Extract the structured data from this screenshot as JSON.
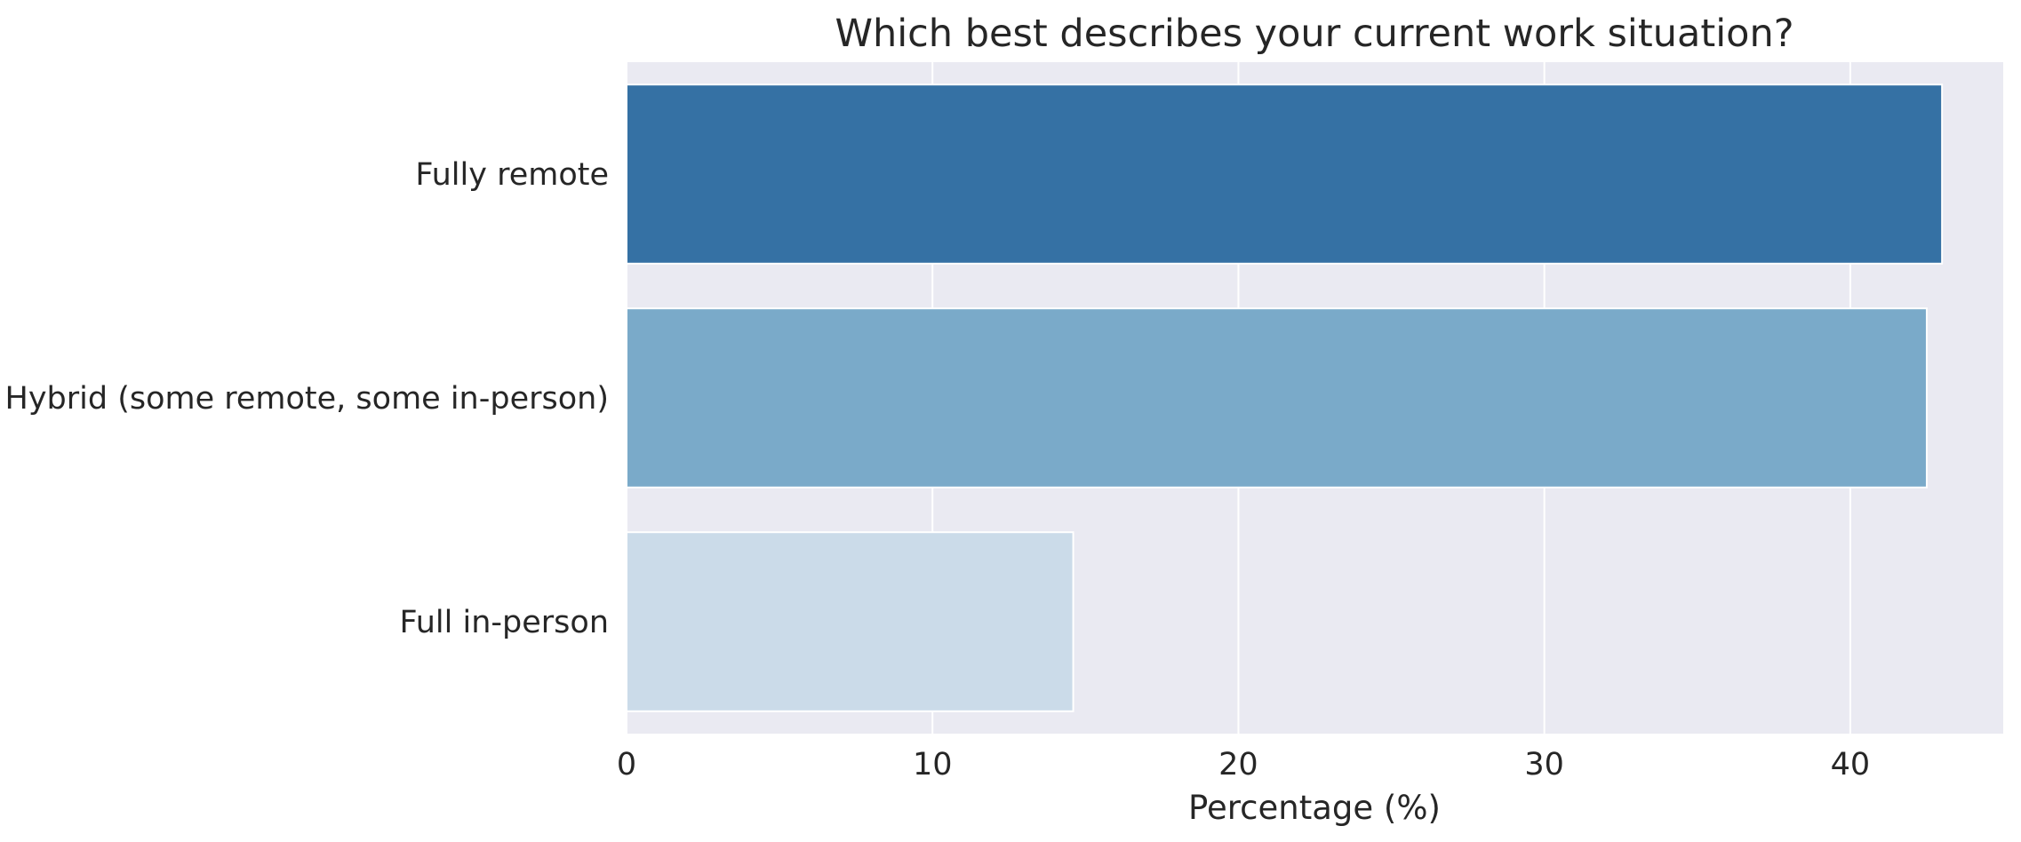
{
  "chart_data": {
    "type": "bar",
    "orientation": "horizontal",
    "title": "Which best describes your current work situation?",
    "xlabel": "Percentage (%)",
    "ylabel": "",
    "categories": [
      "Fully remote",
      "Hybrid (some remote, some in-person)",
      "Full in-person"
    ],
    "values": [
      43.0,
      42.5,
      14.6
    ],
    "colors": [
      "#3571a4",
      "#7aaac9",
      "#cbdbe9"
    ],
    "xlim": [
      0,
      45
    ],
    "xticks": [
      0,
      10,
      20,
      30,
      40
    ],
    "grid": true,
    "legend": "none"
  }
}
